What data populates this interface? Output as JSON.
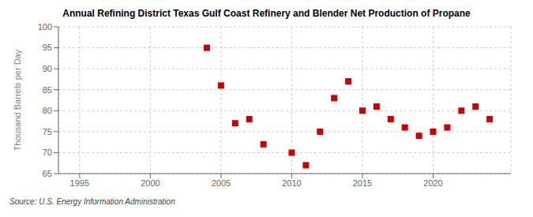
{
  "chart_data": {
    "type": "scatter",
    "title": "Annual Refining District Texas Gulf Coast Refinery and Blender Net Production of Propane",
    "ylabel": "Thousand Barrels per Day",
    "annotation": "Source: U.S. Energy Information Administration",
    "x": [
      2004,
      2005,
      2006,
      2007,
      2008,
      2010,
      2011,
      2012,
      2013,
      2014,
      2015,
      2016,
      2017,
      2018,
      2019,
      2020,
      2021,
      2022,
      2023,
      2024
    ],
    "values": [
      95,
      86,
      77,
      78,
      72,
      70,
      67,
      75,
      83,
      87,
      80,
      81,
      78,
      76,
      74,
      75,
      76,
      80,
      81,
      78
    ],
    "color": "#cc0000",
    "marker": "square",
    "xlim": [
      1993.5,
      2025.5
    ],
    "ylim": [
      65,
      100
    ],
    "xticks": [
      1995,
      2000,
      2005,
      2010,
      2015,
      2020
    ],
    "yticks": [
      65,
      70,
      75,
      80,
      85,
      90,
      95,
      100
    ],
    "grid": true
  }
}
